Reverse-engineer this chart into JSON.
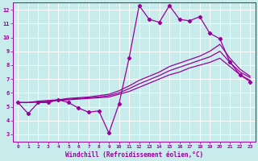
{
  "xlabel": "Windchill (Refroidissement éolien,°C)",
  "bg_color": "#c8ecec",
  "line_color": "#990099",
  "grid_color": "#ffffff",
  "xlim": [
    -0.5,
    23.5
  ],
  "ylim": [
    2.5,
    12.5
  ],
  "xticks": [
    0,
    1,
    2,
    3,
    4,
    5,
    6,
    7,
    8,
    9,
    10,
    11,
    12,
    13,
    14,
    15,
    16,
    17,
    18,
    19,
    20,
    21,
    22,
    23
  ],
  "yticks": [
    3,
    4,
    5,
    6,
    7,
    8,
    9,
    10,
    11,
    12
  ],
  "x": [
    0,
    1,
    2,
    3,
    4,
    5,
    6,
    7,
    8,
    9,
    10,
    11,
    12,
    13,
    14,
    15,
    16,
    17,
    18,
    19,
    20,
    21,
    22,
    23
  ],
  "y_main": [
    5.3,
    4.5,
    5.3,
    5.3,
    5.5,
    5.3,
    4.9,
    4.6,
    4.7,
    3.1,
    5.2,
    8.5,
    12.3,
    11.3,
    11.1,
    12.3,
    11.3,
    11.2,
    11.5,
    10.3,
    9.9,
    8.2,
    7.3,
    6.8
  ],
  "y_line1": [
    5.3,
    5.3,
    5.35,
    5.4,
    5.45,
    5.5,
    5.55,
    5.6,
    5.65,
    5.7,
    5.9,
    6.1,
    6.4,
    6.7,
    7.0,
    7.3,
    7.5,
    7.8,
    8.0,
    8.2,
    8.5,
    7.9,
    7.3,
    6.9
  ],
  "y_line2": [
    5.3,
    5.3,
    5.35,
    5.4,
    5.5,
    5.55,
    5.6,
    5.65,
    5.7,
    5.8,
    6.0,
    6.3,
    6.65,
    6.95,
    7.25,
    7.6,
    7.85,
    8.1,
    8.35,
    8.6,
    9.0,
    8.2,
    7.5,
    7.1
  ],
  "y_line3": [
    5.3,
    5.3,
    5.4,
    5.45,
    5.5,
    5.6,
    5.65,
    5.7,
    5.8,
    5.9,
    6.15,
    6.5,
    6.9,
    7.2,
    7.5,
    7.9,
    8.15,
    8.4,
    8.65,
    9.0,
    9.5,
    8.5,
    7.7,
    7.2
  ]
}
